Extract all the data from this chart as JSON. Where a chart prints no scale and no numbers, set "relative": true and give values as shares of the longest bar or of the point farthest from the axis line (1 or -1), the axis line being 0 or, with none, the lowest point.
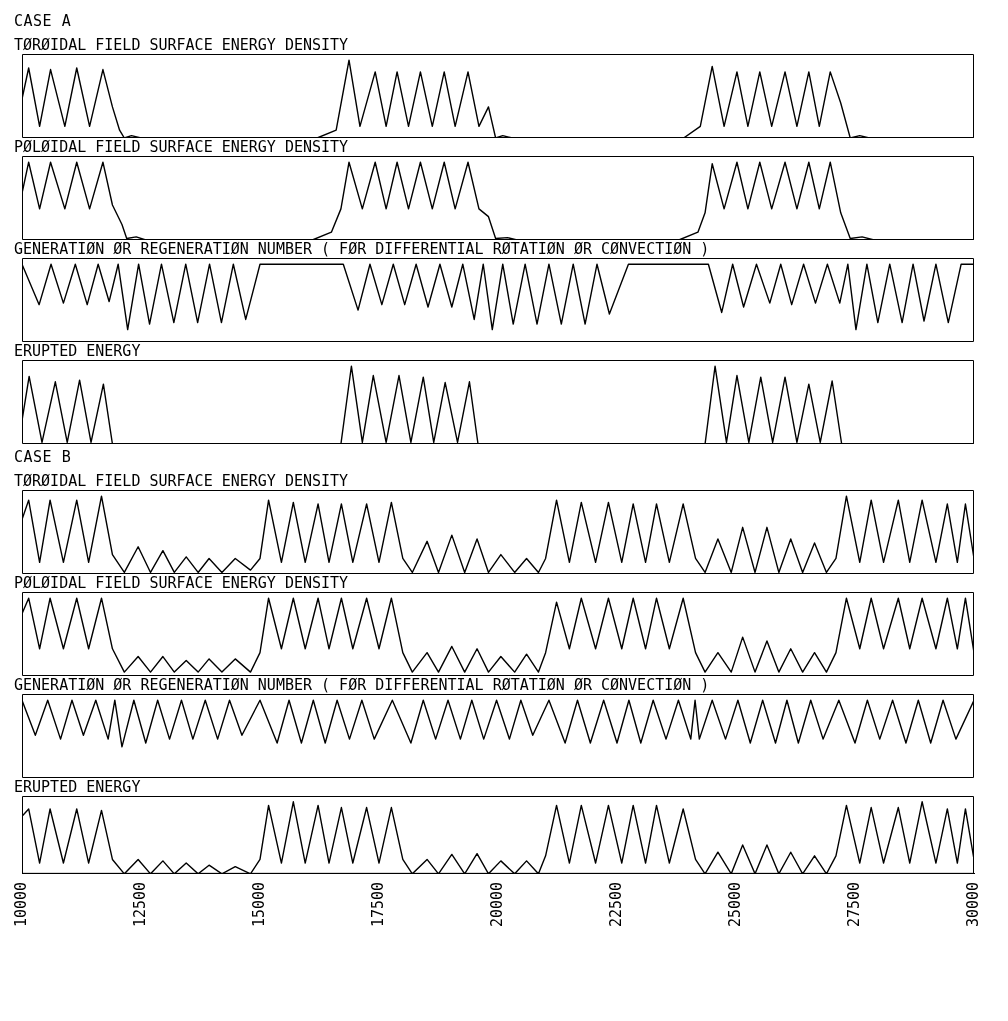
{
  "chart_data": [
    {
      "type": "line",
      "annotations": [
        "CASE A"
      ],
      "title": "TØRØIDAL FIELD SURFACE ENERGY DENSITY",
      "relative": true,
      "color": "#000000",
      "xlim": [
        10000,
        30000
      ],
      "tick_labels": false,
      "x": [
        10000,
        10140,
        10370,
        10600,
        10900,
        11150,
        11420,
        11700,
        11900,
        12050,
        12150,
        12300,
        12500,
        16200,
        16600,
        16870,
        17100,
        17420,
        17650,
        17880,
        18120,
        18370,
        18620,
        18870,
        19100,
        19370,
        19600,
        19800,
        19950,
        20100,
        20300,
        23900,
        24250,
        24500,
        24750,
        25020,
        25250,
        25500,
        25750,
        26030,
        26280,
        26530,
        26750,
        26980,
        27200,
        27400,
        27600,
        27800,
        30000
      ],
      "values": [
        0.5,
        0.9,
        0.15,
        0.88,
        0.15,
        0.9,
        0.15,
        0.88,
        0.4,
        0.1,
        0,
        0.03,
        0,
        0,
        0.1,
        1,
        0.15,
        0.85,
        0.15,
        0.85,
        0.15,
        0.85,
        0.15,
        0.85,
        0.15,
        0.85,
        0.15,
        0.4,
        0,
        0.03,
        0,
        0,
        0.15,
        0.92,
        0.15,
        0.85,
        0.15,
        0.85,
        0.15,
        0.85,
        0.15,
        0.85,
        0.15,
        0.85,
        0.45,
        0,
        0.03,
        0,
        0
      ]
    },
    {
      "type": "line",
      "title": "PØLØIDAL FIELD SURFACE ENERGY DENSITY",
      "relative": true,
      "color": "#000000",
      "xlim": [
        10000,
        30000
      ],
      "tick_labels": false,
      "x": [
        10000,
        10140,
        10370,
        10600,
        10900,
        11150,
        11420,
        11700,
        11900,
        12100,
        12200,
        12400,
        12600,
        16100,
        16500,
        16700,
        16870,
        17150,
        17420,
        17650,
        17880,
        18120,
        18370,
        18620,
        18870,
        19100,
        19370,
        19600,
        19800,
        19950,
        20200,
        20400,
        23800,
        24200,
        24350,
        24500,
        24750,
        25020,
        25250,
        25500,
        25750,
        26030,
        26280,
        26530,
        26750,
        26980,
        27200,
        27400,
        27650,
        27900,
        30000
      ],
      "values": [
        0.6,
        1,
        0.4,
        1,
        0.4,
        1,
        0.4,
        1,
        0.45,
        0.2,
        0.02,
        0.04,
        0,
        0,
        0.1,
        0.4,
        1,
        0.4,
        1,
        0.4,
        1,
        0.4,
        1,
        0.4,
        1,
        0.4,
        1,
        0.4,
        0.3,
        0.02,
        0.03,
        0,
        0,
        0.1,
        0.35,
        0.98,
        0.4,
        1,
        0.4,
        1,
        0.4,
        1,
        0.4,
        1,
        0.4,
        1,
        0.35,
        0.02,
        0.04,
        0,
        0
      ]
    },
    {
      "type": "line",
      "title": "GENERATIØN ØR REGENERATIØN NUMBER ( FØR DIFFERENTIAL RØTATIØN ØR CØNVECTIØN )",
      "relative": true,
      "color": "#000000",
      "xlim": [
        10000,
        30000
      ],
      "tick_labels": false,
      "x": [
        10000,
        10360,
        10610,
        10870,
        11120,
        11370,
        11600,
        11830,
        12020,
        12220,
        12450,
        12680,
        12930,
        13190,
        13440,
        13690,
        13940,
        14190,
        14440,
        14700,
        15000,
        16750,
        17060,
        17310,
        17560,
        17800,
        18040,
        18280,
        18530,
        18780,
        19030,
        19260,
        19500,
        19690,
        19880,
        20100,
        20320,
        20570,
        20820,
        21070,
        21330,
        21580,
        21830,
        22080,
        22340,
        22740,
        24420,
        24700,
        24930,
        25160,
        25430,
        25710,
        25940,
        26170,
        26420,
        26670,
        26920,
        27180,
        27350,
        27520,
        27750,
        27980,
        28230,
        28490,
        28720,
        28950,
        29200,
        29460,
        29730,
        30000
      ],
      "values": [
        1,
        0.48,
        1,
        0.5,
        1,
        0.48,
        1,
        0.52,
        1,
        0.16,
        1,
        0.23,
        1,
        0.25,
        1,
        0.25,
        1,
        0.25,
        1,
        0.29,
        1,
        1,
        0.41,
        1,
        0.48,
        1,
        0.48,
        1,
        0.45,
        1,
        0.45,
        1,
        0.29,
        1,
        0.16,
        1,
        0.23,
        1,
        0.23,
        1,
        0.23,
        1,
        0.23,
        1,
        0.36,
        1,
        1,
        0.38,
        1,
        0.45,
        1,
        0.5,
        1,
        0.48,
        1,
        0.5,
        1,
        0.5,
        1,
        0.16,
        1,
        0.25,
        1,
        0.25,
        1,
        0.27,
        1,
        0.25,
        1,
        1
      ]
    },
    {
      "type": "line",
      "title": "ERUPTED ENERGY",
      "relative": true,
      "color": "#000000",
      "xlim": [
        10000,
        30000
      ],
      "tick_labels": false,
      "x": [
        10000,
        10150,
        10420,
        10700,
        10950,
        11210,
        11450,
        11710,
        11900,
        16700,
        16920,
        17150,
        17380,
        17650,
        17920,
        18170,
        18430,
        18650,
        18890,
        19150,
        19400,
        19580,
        24350,
        24560,
        24800,
        25020,
        25270,
        25520,
        25770,
        26030,
        26280,
        26530,
        26770,
        27020,
        27220,
        30000
      ],
      "values": [
        0.3,
        0.87,
        0.02,
        0.8,
        0.02,
        0.82,
        0.02,
        0.77,
        0,
        0,
        1,
        0.02,
        0.88,
        0.02,
        0.88,
        0.02,
        0.86,
        0.02,
        0.79,
        0.02,
        0.8,
        0,
        0,
        1,
        0.02,
        0.88,
        0.02,
        0.86,
        0.02,
        0.86,
        0.02,
        0.77,
        0.02,
        0.81,
        0,
        0
      ]
    },
    {
      "type": "line",
      "annotations": [
        "CASE B"
      ],
      "title": "TØRØIDAL FIELD SURFACE ENERGY DENSITY",
      "relative": true,
      "color": "#000000",
      "xlim": [
        10000,
        30000
      ],
      "tick_labels": false,
      "x": [
        10000,
        10140,
        10370,
        10590,
        10870,
        11150,
        11400,
        11670,
        11900,
        12150,
        12440,
        12700,
        12960,
        13200,
        13450,
        13700,
        13930,
        14200,
        14480,
        14800,
        15000,
        15180,
        15450,
        15700,
        15950,
        16220,
        16450,
        16710,
        16950,
        17240,
        17500,
        17760,
        18000,
        18200,
        18510,
        18750,
        19030,
        19300,
        19560,
        19800,
        20060,
        20350,
        20600,
        20850,
        21000,
        21230,
        21500,
        21750,
        22050,
        22320,
        22600,
        22840,
        23100,
        23330,
        23600,
        23890,
        24150,
        24350,
        24620,
        24900,
        25140,
        25400,
        25650,
        25900,
        26150,
        26400,
        26650,
        26900,
        27100,
        27320,
        27600,
        27840,
        28100,
        28410,
        28650,
        28910,
        29200,
        29440,
        29650,
        29820,
        30000
      ],
      "values": [
        0.7,
        0.95,
        0.15,
        0.95,
        0.15,
        0.95,
        0.15,
        1,
        0.25,
        0.02,
        0.35,
        0.02,
        0.3,
        0.02,
        0.22,
        0.02,
        0.2,
        0.02,
        0.2,
        0.05,
        0.2,
        0.95,
        0.15,
        0.92,
        0.15,
        0.9,
        0.15,
        0.9,
        0.15,
        0.9,
        0.15,
        0.92,
        0.2,
        0.02,
        0.42,
        0.02,
        0.5,
        0.02,
        0.45,
        0.02,
        0.25,
        0.02,
        0.2,
        0.02,
        0.2,
        0.95,
        0.15,
        0.92,
        0.15,
        0.92,
        0.15,
        0.9,
        0.15,
        0.9,
        0.15,
        0.9,
        0.2,
        0.02,
        0.45,
        0.02,
        0.6,
        0.02,
        0.6,
        0.02,
        0.45,
        0.02,
        0.4,
        0.02,
        0.2,
        1,
        0.15,
        0.95,
        0.15,
        0.95,
        0.15,
        0.95,
        0.15,
        0.9,
        0.15,
        0.9,
        0.2
      ]
    },
    {
      "type": "line",
      "title": "PØLØIDAL FIELD SURFACE ENERGY DENSITY",
      "relative": true,
      "color": "#000000",
      "xlim": [
        10000,
        30000
      ],
      "tick_labels": false,
      "x": [
        10000,
        10140,
        10370,
        10590,
        10870,
        11150,
        11400,
        11670,
        11900,
        12150,
        12440,
        12700,
        12960,
        13200,
        13450,
        13700,
        13930,
        14200,
        14480,
        14800,
        15000,
        15180,
        15450,
        15700,
        15950,
        16220,
        16450,
        16710,
        16950,
        17240,
        17500,
        17760,
        18000,
        18200,
        18510,
        18750,
        19030,
        19300,
        19560,
        19800,
        20060,
        20350,
        20600,
        20850,
        21000,
        21230,
        21500,
        21750,
        22050,
        22320,
        22600,
        22840,
        23100,
        23330,
        23600,
        23890,
        24150,
        24350,
        24620,
        24900,
        25140,
        25400,
        25650,
        25900,
        26150,
        26400,
        26650,
        26900,
        27100,
        27320,
        27600,
        27840,
        28100,
        28410,
        28650,
        28910,
        29200,
        29440,
        29650,
        29820,
        30000
      ],
      "values": [
        0.8,
        1,
        0.35,
        1,
        0.35,
        1,
        0.35,
        1,
        0.35,
        0.05,
        0.25,
        0.05,
        0.25,
        0.05,
        0.2,
        0.05,
        0.22,
        0.05,
        0.22,
        0.05,
        0.3,
        1,
        0.35,
        1,
        0.35,
        1,
        0.35,
        1,
        0.35,
        1,
        0.35,
        1,
        0.3,
        0.05,
        0.3,
        0.05,
        0.38,
        0.05,
        0.35,
        0.05,
        0.25,
        0.05,
        0.28,
        0.05,
        0.3,
        0.95,
        0.35,
        1,
        0.35,
        1,
        0.35,
        1,
        0.35,
        1,
        0.35,
        1,
        0.3,
        0.05,
        0.3,
        0.05,
        0.5,
        0.05,
        0.45,
        0.05,
        0.35,
        0.05,
        0.3,
        0.05,
        0.3,
        1,
        0.35,
        1,
        0.35,
        1,
        0.35,
        1,
        0.35,
        1,
        0.35,
        1,
        0.3
      ]
    },
    {
      "type": "line",
      "title": "GENERATIØN ØR REGENERATIØN NUMBER ( FØR DIFFERENTIAL RØTATIØN ØR CØNVECTIØN )",
      "relative": true,
      "color": "#000000",
      "xlim": [
        10000,
        30000
      ],
      "tick_labels": false,
      "x": [
        10000,
        10280,
        10540,
        10810,
        11050,
        11290,
        11550,
        11810,
        11950,
        12100,
        12350,
        12600,
        12850,
        13100,
        13350,
        13590,
        13850,
        14110,
        14360,
        14620,
        15000,
        15360,
        15610,
        15870,
        16120,
        16370,
        16620,
        16880,
        17140,
        17400,
        17780,
        18170,
        18430,
        18690,
        18950,
        19210,
        19450,
        19700,
        19970,
        20240,
        20480,
        20730,
        21070,
        21410,
        21670,
        21940,
        22220,
        22500,
        22750,
        23000,
        23260,
        23530,
        23790,
        24050,
        24140,
        24230,
        24500,
        24780,
        25040,
        25300,
        25560,
        25830,
        26070,
        26310,
        26570,
        26830,
        27160,
        27500,
        27760,
        28020,
        28290,
        28570,
        28830,
        29090,
        29350,
        29620,
        30000
      ],
      "values": [
        1,
        0.55,
        1,
        0.5,
        1,
        0.55,
        1,
        0.5,
        1,
        0.4,
        1,
        0.45,
        1,
        0.5,
        1,
        0.5,
        1,
        0.5,
        1,
        0.55,
        1,
        0.45,
        1,
        0.45,
        1,
        0.45,
        1,
        0.5,
        1,
        0.5,
        1,
        0.45,
        1,
        0.5,
        1,
        0.5,
        1,
        0.5,
        1,
        0.5,
        1,
        0.55,
        1,
        0.45,
        1,
        0.45,
        1,
        0.45,
        1,
        0.45,
        1,
        0.5,
        1,
        0.5,
        1,
        0.5,
        1,
        0.5,
        1,
        0.45,
        1,
        0.45,
        1,
        0.45,
        1,
        0.5,
        1,
        0.45,
        1,
        0.5,
        1,
        0.45,
        1,
        0.45,
        1,
        0.5,
        1
      ]
    },
    {
      "type": "line",
      "title": "ERUPTED ENERGY",
      "relative": true,
      "color": "#000000",
      "xlim": [
        10000,
        30000
      ],
      "xticks": [
        10000,
        12500,
        15000,
        17500,
        20000,
        22500,
        25000,
        27500,
        30000
      ],
      "tick_labels": "x",
      "x": [
        10000,
        10140,
        10370,
        10590,
        10870,
        11150,
        11400,
        11670,
        11900,
        12150,
        12440,
        12700,
        12960,
        13200,
        13450,
        13700,
        13930,
        14200,
        14480,
        14800,
        15000,
        15180,
        15450,
        15700,
        15950,
        16220,
        16450,
        16710,
        16950,
        17240,
        17500,
        17760,
        18000,
        18200,
        18510,
        18750,
        19030,
        19300,
        19560,
        19800,
        20060,
        20350,
        20600,
        20850,
        21000,
        21230,
        21500,
        21750,
        22050,
        22320,
        22600,
        22840,
        23100,
        23330,
        23600,
        23890,
        24150,
        24350,
        24620,
        24900,
        25140,
        25400,
        25650,
        25900,
        26150,
        26400,
        26650,
        26900,
        27100,
        27320,
        27600,
        27840,
        28100,
        28410,
        28650,
        28910,
        29200,
        29440,
        29650,
        29820,
        30000
      ],
      "values": [
        0.8,
        0.9,
        0.15,
        0.9,
        0.15,
        0.9,
        0.15,
        0.88,
        0.2,
        0,
        0.2,
        0,
        0.18,
        0,
        0.15,
        0,
        0.12,
        0,
        0.1,
        0,
        0.2,
        0.95,
        0.15,
        1,
        0.15,
        0.95,
        0.15,
        0.92,
        0.15,
        0.92,
        0.15,
        0.92,
        0.2,
        0,
        0.2,
        0,
        0.27,
        0,
        0.28,
        0,
        0.18,
        0,
        0.18,
        0,
        0.25,
        0.95,
        0.15,
        0.95,
        0.15,
        0.95,
        0.15,
        0.95,
        0.15,
        0.95,
        0.15,
        0.9,
        0.2,
        0,
        0.3,
        0,
        0.4,
        0,
        0.4,
        0,
        0.3,
        0,
        0.25,
        0,
        0.25,
        0.95,
        0.15,
        0.92,
        0.15,
        0.92,
        0.15,
        1,
        0.15,
        0.9,
        0.15,
        0.9,
        0.2
      ]
    }
  ]
}
